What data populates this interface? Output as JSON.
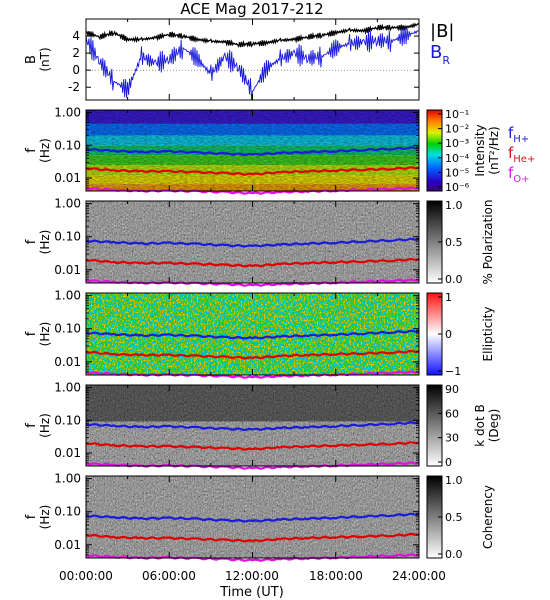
{
  "title": "ACE Mag 2017-212",
  "x_axis": {
    "label": "Time (UT)",
    "ticks": [
      "00:00:00",
      "06:00:00",
      "12:00:00",
      "18:00:00",
      "24:00:00"
    ],
    "range_hours": [
      0,
      24
    ]
  },
  "legend_top": {
    "b_total": {
      "label": "|B|",
      "color": "#000000"
    },
    "b_r": {
      "label": "B",
      "sub": "R",
      "color": "#1a1adc"
    }
  },
  "legend_freq": [
    {
      "label": "f",
      "sub": "H+",
      "color": "#1a1adc"
    },
    {
      "label": "f",
      "sub": "He+",
      "color": "#dc1414"
    },
    {
      "label": "f",
      "sub": "O+",
      "color": "#dc1edc"
    }
  ],
  "colors": {
    "btotal": "#000000",
    "br": "#1a1adc",
    "fH": "#1a1adc",
    "fHe": "#e00000",
    "fO": "#e010e0"
  },
  "chart_data": [
    {
      "type": "line",
      "ylabel": "B",
      "yunit": "(nT)",
      "ylim": [
        -3.5,
        6
      ],
      "yticks": [
        "4",
        "2",
        "0",
        "-2"
      ],
      "x_hours": [
        0,
        1,
        2,
        3,
        4,
        5,
        6,
        7,
        8,
        9,
        10,
        11,
        12,
        13,
        14,
        15,
        16,
        17,
        18,
        19,
        20,
        21,
        22,
        23,
        24
      ],
      "series": [
        {
          "name": "|B|",
          "values": [
            4.4,
            3.9,
            4.4,
            3.6,
            3.6,
            3.8,
            4.2,
            4.0,
            3.6,
            3.4,
            3.3,
            3.0,
            3.1,
            3.2,
            3.5,
            3.6,
            3.9,
            4.1,
            4.4,
            4.7,
            4.6,
            5.0,
            5.0,
            5.0,
            5.4
          ]
        },
        {
          "name": "BR",
          "values": [
            3.6,
            1.0,
            -1.3,
            -2.3,
            1.6,
            0.8,
            1.3,
            2.6,
            1.4,
            -0.5,
            1.6,
            0.3,
            -2.5,
            0.2,
            1.3,
            2.0,
            1.4,
            1.6,
            2.6,
            3.1,
            3.3,
            3.5,
            3.4,
            4.0,
            4.6
          ]
        }
      ]
    },
    {
      "type": "heatmap",
      "ylabel": "f",
      "yunit": "(Hz)",
      "yscale": "log",
      "ylim": [
        0.004,
        1.2
      ],
      "yticks": [
        "1.00",
        "0.10",
        "0.01"
      ],
      "colorbar": {
        "label": "Intensity",
        "unit": "(nT²/Hz)",
        "ticks": [
          "10⁻¹",
          "10⁻²",
          "10⁻³",
          "10⁻⁴",
          "10⁻⁵",
          "10⁻⁶"
        ],
        "scale": "log"
      }
    },
    {
      "type": "heatmap",
      "ylabel": "f",
      "yunit": "(Hz)",
      "yscale": "log",
      "ylim": [
        0.004,
        1.2
      ],
      "yticks": [
        "1.00",
        "0.10",
        "0.01"
      ],
      "colorbar": {
        "label": "% Polarization",
        "unit": "",
        "ticks": [
          "1.0",
          "0.5",
          "0.0"
        ],
        "scale": "gray"
      }
    },
    {
      "type": "heatmap",
      "ylabel": "f",
      "yunit": "(Hz)",
      "yscale": "log",
      "ylim": [
        0.004,
        1.2
      ],
      "yticks": [
        "1.00",
        "0.10",
        "0.01"
      ],
      "colorbar": {
        "label": "Ellipticity",
        "unit": "",
        "ticks": [
          "1",
          "0",
          "−1"
        ],
        "scale": "diverging"
      }
    },
    {
      "type": "heatmap",
      "ylabel": "f",
      "yunit": "(Hz)",
      "yscale": "log",
      "ylim": [
        0.004,
        1.2
      ],
      "yticks": [
        "1.00",
        "0.10",
        "0.01"
      ],
      "colorbar": {
        "label": "k dot B",
        "unit": "(Deg)",
        "ticks": [
          "90",
          "60",
          "30",
          "0"
        ],
        "scale": "gray"
      }
    },
    {
      "type": "heatmap",
      "ylabel": "f",
      "yunit": "(Hz)",
      "yscale": "log",
      "ylim": [
        0.004,
        1.2
      ],
      "yticks": [
        "1.00",
        "0.10",
        "0.01"
      ],
      "colorbar": {
        "label": "Coherency",
        "unit": "",
        "ticks": [
          "1.0",
          "0.5",
          "0.0"
        ],
        "scale": "gray"
      }
    }
  ],
  "gyro_lines": {
    "x_hours": [
      0,
      2,
      4,
      6,
      8,
      10,
      12,
      14,
      16,
      18,
      20,
      22,
      24
    ],
    "fH": [
      0.075,
      0.068,
      0.062,
      0.065,
      0.06,
      0.055,
      0.052,
      0.058,
      0.062,
      0.066,
      0.072,
      0.078,
      0.085
    ],
    "fHe": [
      0.02,
      0.017,
      0.016,
      0.016,
      0.015,
      0.014,
      0.013,
      0.015,
      0.016,
      0.017,
      0.018,
      0.019,
      0.021
    ],
    "fO": [
      0.0048,
      0.0043,
      0.004,
      0.0041,
      0.0039,
      0.0037,
      0.0034,
      0.0037,
      0.0039,
      0.0041,
      0.0044,
      0.0047,
      0.005
    ]
  }
}
